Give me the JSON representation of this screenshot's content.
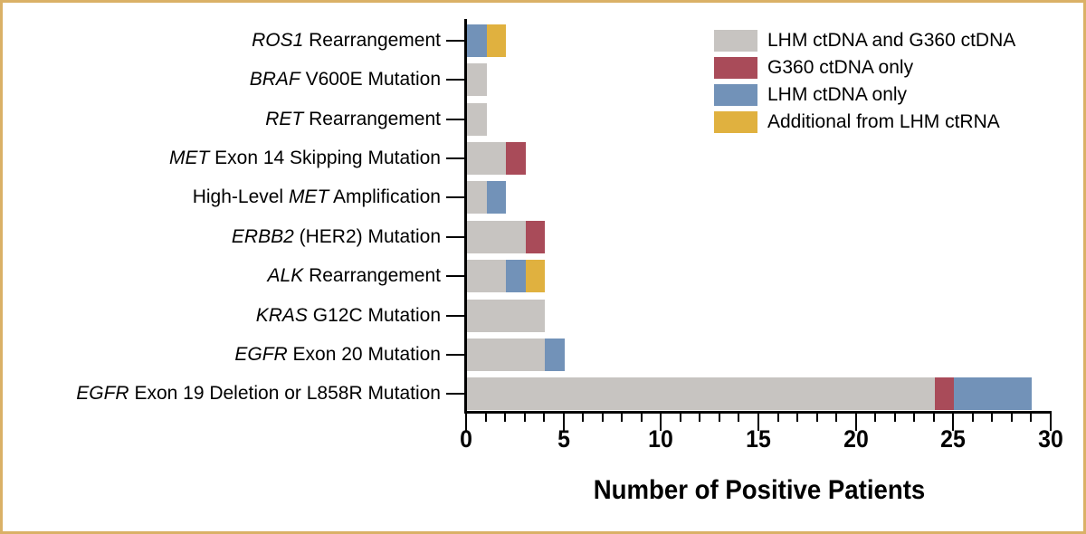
{
  "colors": {
    "border": "#dab167",
    "axis": "#000000",
    "gray": "#c7c4c1",
    "red": "#a94b59",
    "blue": "#7292b8",
    "yellow": "#e0b13f"
  },
  "legend": [
    {
      "label": "LHM ctDNA and G360 ctDNA",
      "color": "#c7c4c1"
    },
    {
      "label": "G360 ctDNA only",
      "color": "#a94b59"
    },
    {
      "label": "LHM ctDNA only",
      "color": "#7292b8"
    },
    {
      "label": "Additional from LHM ctRNA",
      "color": "#e0b13f"
    }
  ],
  "chart_data": {
    "type": "bar",
    "orientation": "horizontal",
    "stacked": true,
    "title": "",
    "xlabel": "Number of Positive Patients",
    "ylabel": "",
    "xlim": [
      0,
      30
    ],
    "x_major_ticks": [
      0,
      5,
      10,
      15,
      20,
      25,
      30
    ],
    "x_minor_tick_step": 1,
    "grid": false,
    "legend_position": "top-right",
    "categories": [
      {
        "parts": [
          {
            "text": "ROS1",
            "italic": true
          },
          {
            "text": " Rearrangement",
            "italic": false
          }
        ]
      },
      {
        "parts": [
          {
            "text": "BRAF",
            "italic": true
          },
          {
            "text": " V600E Mutation",
            "italic": false
          }
        ]
      },
      {
        "parts": [
          {
            "text": "RET",
            "italic": true
          },
          {
            "text": " Rearrangement",
            "italic": false
          }
        ]
      },
      {
        "parts": [
          {
            "text": "MET",
            "italic": true
          },
          {
            "text": " Exon 14 Skipping Mutation",
            "italic": false
          }
        ]
      },
      {
        "parts": [
          {
            "text": "High-Level ",
            "italic": false
          },
          {
            "text": "MET",
            "italic": true
          },
          {
            "text": " Amplification",
            "italic": false
          }
        ]
      },
      {
        "parts": [
          {
            "text": "ERBB2",
            "italic": true
          },
          {
            "text": " (HER2) Mutation",
            "italic": false
          }
        ]
      },
      {
        "parts": [
          {
            "text": "ALK",
            "italic": true
          },
          {
            "text": " Rearrangement",
            "italic": false
          }
        ]
      },
      {
        "parts": [
          {
            "text": "KRAS",
            "italic": true
          },
          {
            "text": " G12C Mutation",
            "italic": false
          }
        ]
      },
      {
        "parts": [
          {
            "text": "EGFR",
            "italic": true
          },
          {
            "text": " Exon 20 Mutation",
            "italic": false
          }
        ]
      },
      {
        "parts": [
          {
            "text": "EGFR",
            "italic": true
          },
          {
            "text": " Exon 19 Deletion or L858R Mutation",
            "italic": false
          }
        ]
      }
    ],
    "series": [
      {
        "name": "LHM ctDNA and G360 ctDNA",
        "color": "#c7c4c1",
        "values": [
          0,
          1,
          1,
          2,
          1,
          3,
          2,
          4,
          4,
          24
        ]
      },
      {
        "name": "G360 ctDNA only",
        "color": "#a94b59",
        "values": [
          0,
          0,
          0,
          1,
          0,
          1,
          0,
          0,
          0,
          1
        ]
      },
      {
        "name": "LHM ctDNA only",
        "color": "#7292b8",
        "values": [
          1,
          0,
          0,
          0,
          1,
          0,
          1,
          0,
          1,
          4
        ]
      },
      {
        "name": "Additional from LHM ctRNA",
        "color": "#e0b13f",
        "values": [
          1,
          0,
          0,
          0,
          0,
          0,
          1,
          0,
          0,
          0
        ]
      }
    ],
    "totals": [
      2,
      1,
      1,
      3,
      2,
      4,
      4,
      4,
      5,
      29
    ]
  }
}
